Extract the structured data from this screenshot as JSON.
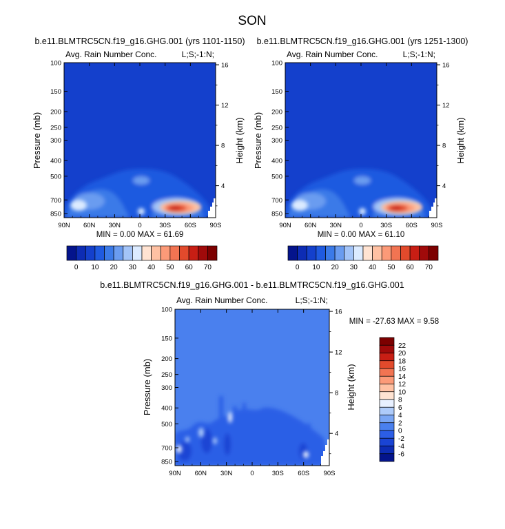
{
  "figure": {
    "season": "SON"
  },
  "chart_data": [
    {
      "type": "heatmap",
      "panel_title": "b.e11.BLMTRC5CN.f19_g16.GHG.001 (yrs 1101-1150)",
      "left_string": "Avg. Rain Number Conc.",
      "right_string": "L;S;-1:N;",
      "ylabel": "Pressure (mb)",
      "ylabel_right": "Height (km)",
      "x_ticks": [
        "90N",
        "60N",
        "30N",
        "0",
        "30S",
        "60S",
        "90S"
      ],
      "y_ticks": [
        "100",
        "150",
        "200",
        "250",
        "300",
        "400",
        "500",
        "700",
        "850"
      ],
      "y_ticks_right": [
        "16",
        "12",
        "8",
        "4"
      ],
      "stats": "MIN =  0.00  MAX = 61.69",
      "min": 0.0,
      "max": 61.69,
      "colorbar_levels": [
        0,
        5,
        10,
        15,
        20,
        25,
        30,
        35,
        40,
        45,
        50,
        55,
        60,
        65,
        70
      ],
      "colorbar_labels": [
        "0",
        "10",
        "20",
        "30",
        "40",
        "50",
        "60",
        "70"
      ],
      "colorbar_colors": [
        "#04148c",
        "#0d2cb4",
        "#1440cc",
        "#1f5ae0",
        "#3b7ae8",
        "#6a9cf0",
        "#a3c4f8",
        "#dcebff",
        "#ffe3d2",
        "#ffc1a3",
        "#fc9a78",
        "#f27452",
        "#e24a2c",
        "#c81e14",
        "#a00a0a",
        "#7c0000"
      ],
      "hotspots": [
        {
          "lat": -40,
          "p": 840,
          "value": 61.69
        },
        {
          "lat": 80,
          "p": 820,
          "value": 38
        },
        {
          "lat": 55,
          "p": 780,
          "value": 24
        },
        {
          "lat": 5,
          "p": 820,
          "value": 18
        }
      ]
    },
    {
      "type": "heatmap",
      "panel_title": "b.e11.BLMTRC5CN.f19_g16.GHG.001 (yrs 1251-1300)",
      "left_string": "Avg. Rain Number Conc.",
      "right_string": "L;S;-1:N;",
      "ylabel": "Pressure (mb)",
      "ylabel_right": "Height (km)",
      "x_ticks": [
        "90N",
        "60N",
        "30N",
        "0",
        "30S",
        "60S",
        "90S"
      ],
      "y_ticks": [
        "100",
        "150",
        "200",
        "250",
        "300",
        "400",
        "500",
        "700",
        "850"
      ],
      "y_ticks_right": [
        "16",
        "12",
        "8",
        "4"
      ],
      "stats": "MIN =  0.00  MAX = 61.10",
      "min": 0.0,
      "max": 61.1,
      "colorbar_levels": [
        0,
        5,
        10,
        15,
        20,
        25,
        30,
        35,
        40,
        45,
        50,
        55,
        60,
        65,
        70
      ],
      "colorbar_labels": [
        "0",
        "10",
        "20",
        "30",
        "40",
        "50",
        "60",
        "70"
      ],
      "colorbar_colors": [
        "#04148c",
        "#0d2cb4",
        "#1440cc",
        "#1f5ae0",
        "#3b7ae8",
        "#6a9cf0",
        "#a3c4f8",
        "#dcebff",
        "#ffe3d2",
        "#ffc1a3",
        "#fc9a78",
        "#f27452",
        "#e24a2c",
        "#c81e14",
        "#a00a0a",
        "#7c0000"
      ],
      "hotspots": [
        {
          "lat": -40,
          "p": 840,
          "value": 61.1
        },
        {
          "lat": 80,
          "p": 820,
          "value": 36
        },
        {
          "lat": 55,
          "p": 780,
          "value": 23
        },
        {
          "lat": 5,
          "p": 820,
          "value": 17
        }
      ]
    },
    {
      "type": "heatmap",
      "panel_title": "b.e11.BLMTRC5CN.f19_g16.GHG.001 - b.e11.BLMTRC5CN.f19_g16.GHG.001",
      "left_string": "Avg. Rain Number Conc.",
      "right_string": "L;S;-1:N;",
      "ylabel": "Pressure (mb)",
      "ylabel_right": "Height (km)",
      "x_ticks": [
        "90N",
        "60N",
        "30N",
        "0",
        "30S",
        "60S",
        "90S"
      ],
      "y_ticks": [
        "100",
        "150",
        "200",
        "250",
        "300",
        "400",
        "500",
        "700",
        "850"
      ],
      "y_ticks_right": [
        "16",
        "12",
        "8",
        "4"
      ],
      "stats": "MIN = -27.63  MAX =   9.58",
      "min": -27.63,
      "max": 9.58,
      "colorbar_levels": [
        -6,
        -4,
        -2,
        0,
        2,
        4,
        6,
        8,
        10,
        12,
        14,
        16,
        18,
        20,
        22
      ],
      "colorbar_labels": [
        "22",
        "20",
        "18",
        "16",
        "14",
        "12",
        "10",
        "8",
        "6",
        "4",
        "2",
        "0",
        "-2",
        "-4",
        "-6"
      ],
      "colorbar_colors": [
        "#04148c",
        "#0d2cb4",
        "#1a44d4",
        "#2c5ee6",
        "#4a80ee",
        "#7aa6f4",
        "#aecbfa",
        "#e8f0ff",
        "#ffe3d2",
        "#ffc1a3",
        "#fc9a78",
        "#f27452",
        "#e24a2c",
        "#c81e14",
        "#a00a0a",
        "#7c0000"
      ],
      "background_value": 0
    }
  ]
}
